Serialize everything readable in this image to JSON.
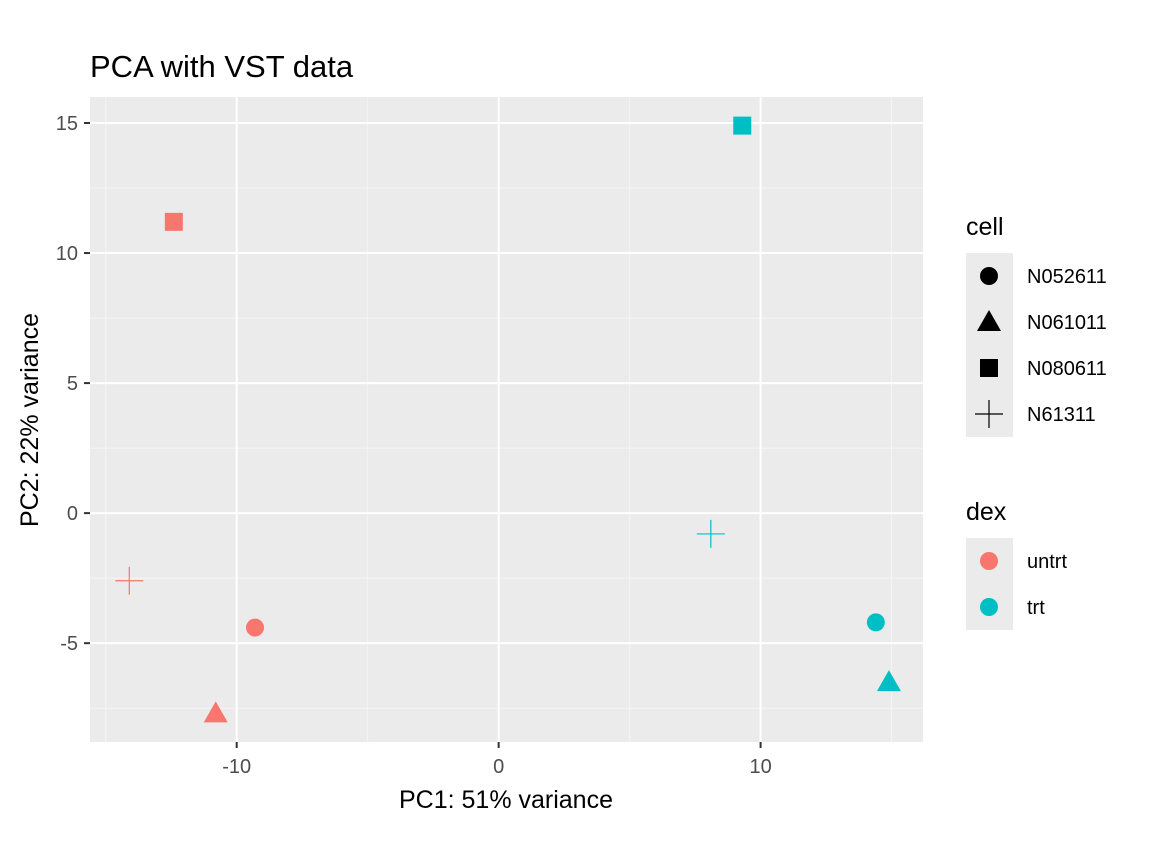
{
  "chart_data": {
    "type": "scatter",
    "title": "PCA with VST data",
    "xlabel": "PC1: 51% variance",
    "ylabel": "PC2: 22% variance",
    "xlim": [
      -15.6,
      16.2
    ],
    "ylim": [
      -8.8,
      16.0
    ],
    "xticks": [
      -10,
      0,
      10
    ],
    "xtick_labels": [
      "-10",
      "0",
      "10"
    ],
    "yticks": [
      -5,
      0,
      5,
      10,
      15
    ],
    "ytick_labels": [
      "-5",
      "0",
      "5",
      "10",
      "15"
    ],
    "grid": true,
    "legend_position": "right",
    "legends": {
      "cell": {
        "title": "cell",
        "entries": [
          {
            "label": "N052611",
            "shape": "circle"
          },
          {
            "label": "N061011",
            "shape": "triangle"
          },
          {
            "label": "N080611",
            "shape": "square"
          },
          {
            "label": "N61311",
            "shape": "plus"
          }
        ]
      },
      "dex": {
        "title": "dex",
        "entries": [
          {
            "label": "untrt",
            "color": "#F8766D"
          },
          {
            "label": "trt",
            "color": "#00BFC4"
          }
        ]
      }
    },
    "points": [
      {
        "x": -12.4,
        "y": 11.2,
        "cell": "N080611",
        "dex": "untrt"
      },
      {
        "x": -14.1,
        "y": -2.6,
        "cell": "N61311",
        "dex": "untrt"
      },
      {
        "x": -9.3,
        "y": -4.4,
        "cell": "N052611",
        "dex": "untrt"
      },
      {
        "x": -10.8,
        "y": -7.7,
        "cell": "N061011",
        "dex": "untrt"
      },
      {
        "x": 9.3,
        "y": 14.9,
        "cell": "N080611",
        "dex": "trt"
      },
      {
        "x": 8.1,
        "y": -0.8,
        "cell": "N61311",
        "dex": "trt"
      },
      {
        "x": 14.4,
        "y": -4.2,
        "cell": "N052611",
        "dex": "trt"
      },
      {
        "x": 14.9,
        "y": -6.5,
        "cell": "N061011",
        "dex": "trt"
      }
    ]
  },
  "colors": {
    "panel_background": "#EBEBEB",
    "grid_major": "#FFFFFF",
    "grid_minor": "#F5F5F5",
    "untrt": "#F8766D",
    "trt": "#00BFC4",
    "legend_key_background": "#EBEBEB"
  }
}
